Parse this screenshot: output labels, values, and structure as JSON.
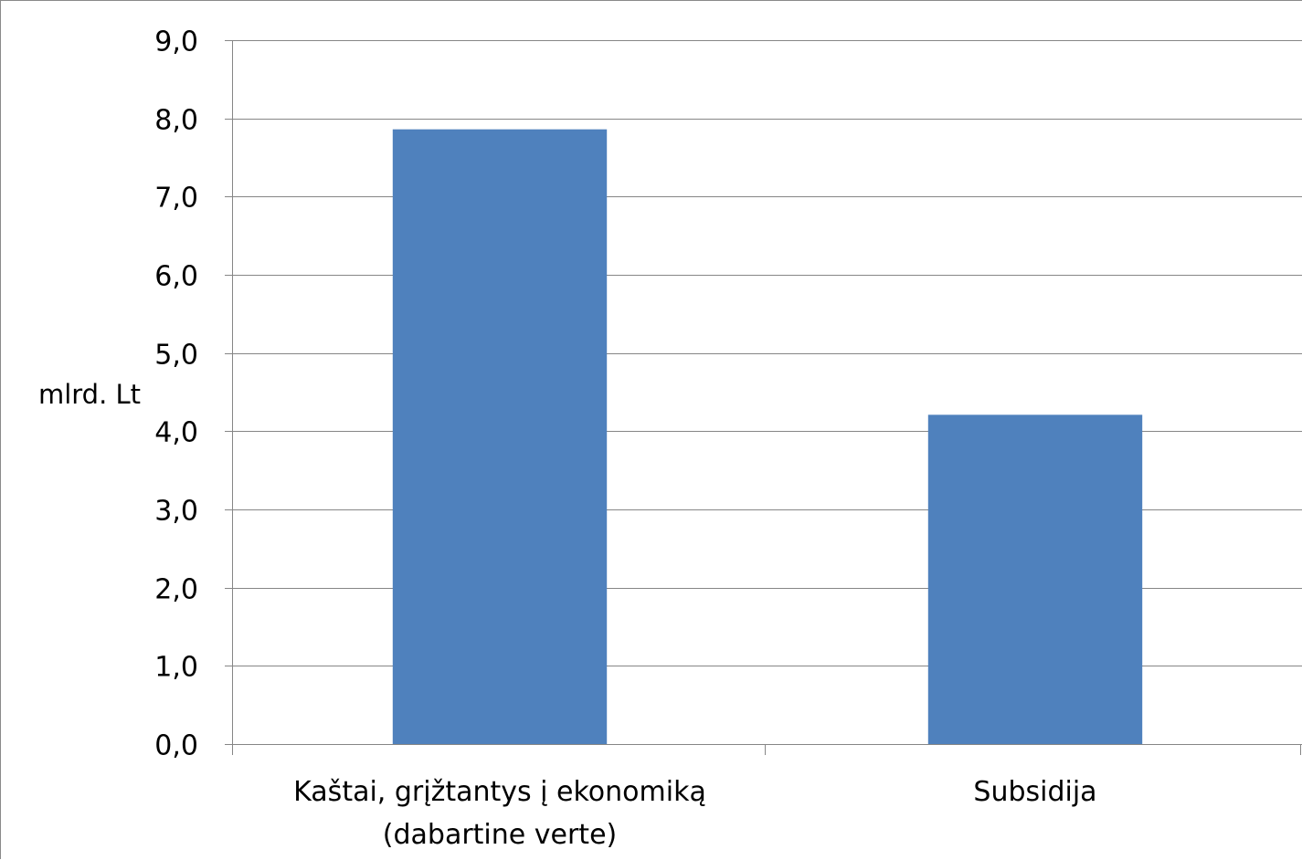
{
  "chart_data": {
    "type": "bar",
    "title": "",
    "ylabel": "mlrd. Lt",
    "xlabel": "",
    "categories": [
      [
        "Kaštai, grįžtantys į ekonomiką",
        "(dabartine verte)"
      ],
      [
        "Subsidija"
      ]
    ],
    "values": [
      7.86,
      4.21
    ],
    "ylim": [
      0,
      9
    ],
    "yticks": [
      "0,0",
      "1,0",
      "2,0",
      "3,0",
      "4,0",
      "5,0",
      "6,0",
      "7,0",
      "8,0",
      "9,0"
    ],
    "grid": true,
    "legend": "none",
    "bar_color": "#4f81bd",
    "gridline_color": "#868686",
    "axis_color": "#868686"
  }
}
